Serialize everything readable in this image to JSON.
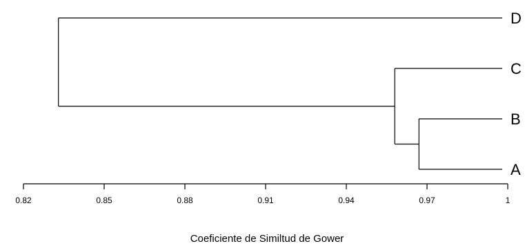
{
  "chart_data": {
    "type": "dendrogram",
    "xlabel": "Coeficiente de Similtud de Gower",
    "xlim": [
      0.82,
      1
    ],
    "ticks": [
      "0.82",
      "0.85",
      "0.88",
      "0.91",
      "0.94",
      "0.97",
      "1"
    ],
    "leaves": [
      "D",
      "C",
      "B",
      "A"
    ],
    "merges": [
      {
        "join": [
          "B",
          "A"
        ],
        "similarity": 0.967
      },
      {
        "join": [
          "C",
          "BA"
        ],
        "similarity": 0.958
      },
      {
        "join": [
          "D",
          "CBA"
        ],
        "similarity": 0.833
      }
    ]
  }
}
